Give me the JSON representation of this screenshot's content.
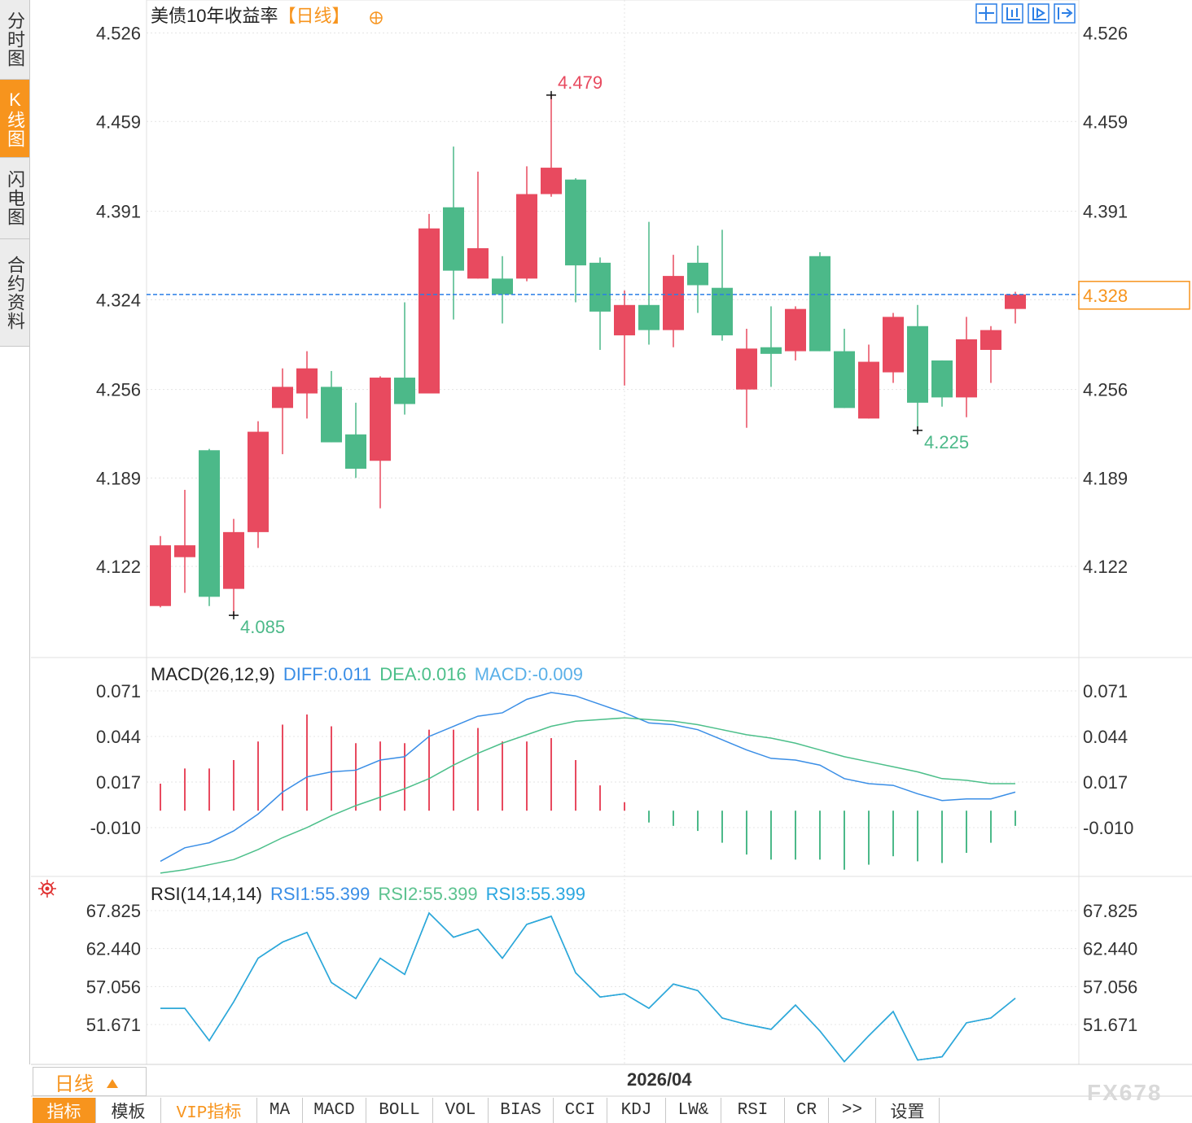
{
  "ui": {
    "sidebar": [
      "分时图",
      "K线图",
      "闪电图",
      "合约资料"
    ],
    "period_button": "日线",
    "toolbar": [
      "指标",
      "模板",
      "VIP指标",
      "MA",
      "MACD",
      "BOLL",
      "VOL",
      "BIAS",
      "CCI",
      "KDJ",
      "LW&",
      "RSI",
      "CR",
      ">>",
      "设置"
    ],
    "watermark": "FX678"
  },
  "chart_data": [
    {
      "type": "candlestick",
      "title": "美债10年收益率",
      "period": "【日线】",
      "categories": [
        null,
        null,
        null,
        null,
        null,
        null,
        null,
        null,
        null,
        null,
        null,
        null,
        null,
        null,
        null,
        null,
        null,
        null,
        null,
        "2026/04",
        null,
        null,
        null,
        null,
        null,
        null,
        null,
        null,
        null,
        null,
        null,
        null,
        null,
        null,
        null,
        null
      ],
      "open": [
        4.092,
        4.129,
        4.21,
        4.105,
        4.148,
        4.242,
        4.253,
        4.258,
        4.222,
        4.202,
        4.265,
        4.253,
        4.394,
        4.34,
        4.34,
        4.34,
        4.404,
        4.415,
        4.352,
        4.297,
        4.32,
        4.301,
        4.352,
        4.333,
        4.256,
        4.288,
        4.285,
        4.357,
        4.285,
        4.234,
        4.269,
        4.304,
        4.278,
        4.25,
        4.286,
        4.317
      ],
      "high": [
        4.145,
        4.18,
        4.211,
        4.158,
        4.232,
        4.272,
        4.285,
        4.27,
        4.246,
        4.266,
        4.322,
        4.389,
        4.44,
        4.421,
        4.357,
        4.425,
        4.479,
        4.416,
        4.356,
        4.331,
        4.383,
        4.358,
        4.365,
        4.377,
        4.302,
        4.319,
        4.319,
        4.36,
        4.302,
        4.29,
        4.314,
        4.32,
        4.278,
        4.311,
        4.304,
        4.33
      ],
      "low": [
        4.091,
        4.102,
        4.092,
        4.085,
        4.136,
        4.207,
        4.234,
        4.216,
        4.189,
        4.166,
        4.237,
        4.253,
        4.309,
        4.34,
        4.306,
        4.338,
        4.402,
        4.322,
        4.286,
        4.259,
        4.29,
        4.288,
        4.314,
        4.293,
        4.227,
        4.258,
        4.278,
        4.285,
        4.242,
        4.234,
        4.261,
        4.225,
        4.243,
        4.235,
        4.261,
        4.306
      ],
      "close": [
        4.138,
        4.138,
        4.099,
        4.148,
        4.224,
        4.258,
        4.272,
        4.216,
        4.196,
        4.265,
        4.245,
        4.378,
        4.346,
        4.363,
        4.328,
        4.404,
        4.424,
        4.35,
        4.315,
        4.32,
        4.301,
        4.342,
        4.335,
        4.297,
        4.287,
        4.283,
        4.317,
        4.285,
        4.242,
        4.277,
        4.311,
        4.246,
        4.25,
        4.294,
        4.301,
        4.328
      ],
      "up_color": "#e84a5f",
      "down_color": "#4cb989",
      "extreme_marks": [
        {
          "series": "high",
          "index": 16
        },
        {
          "series": "low",
          "index": 3
        },
        {
          "series": "low",
          "index": 31
        }
      ],
      "ylim": [
        4.053,
        4.551
      ],
      "yticks": [
        4.526,
        4.459,
        4.391,
        4.324,
        4.256,
        4.189,
        4.122
      ],
      "grid": true
    },
    {
      "type": "macd",
      "title": "MACD(26,12,9)",
      "separator": ":",
      "series": [
        {
          "name": "DIFF",
          "color": "#3a8ee6",
          "values": [
            -0.03,
            -0.022,
            -0.019,
            -0.012,
            -0.002,
            0.011,
            0.02,
            0.023,
            0.024,
            0.03,
            0.032,
            0.044,
            0.05,
            0.056,
            0.058,
            0.066,
            0.07,
            0.068,
            0.063,
            0.058,
            0.052,
            0.051,
            0.048,
            0.042,
            0.036,
            0.031,
            0.03,
            0.027,
            0.019,
            0.016,
            0.015,
            0.01,
            0.006,
            0.007,
            0.007,
            0.011
          ]
        },
        {
          "name": "DEA",
          "color": "#4cbf8a",
          "values": [
            -0.037,
            -0.035,
            -0.032,
            -0.029,
            -0.023,
            -0.016,
            -0.01,
            -0.003,
            0.003,
            0.008,
            0.013,
            0.019,
            0.027,
            0.034,
            0.04,
            0.045,
            0.05,
            0.053,
            0.054,
            0.055,
            0.054,
            0.053,
            0.051,
            0.048,
            0.045,
            0.043,
            0.04,
            0.036,
            0.032,
            0.029,
            0.026,
            0.023,
            0.019,
            0.018,
            0.016,
            0.016
          ]
        },
        {
          "name": "MACD",
          "type": "bar",
          "color": "#5ab0e8",
          "up_color": "#e84a5f",
          "down_color": "#4cb989",
          "values": [
            0.016,
            0.025,
            0.025,
            0.03,
            0.041,
            0.051,
            0.057,
            0.05,
            0.04,
            0.041,
            0.04,
            0.048,
            0.048,
            0.049,
            0.041,
            0.041,
            0.043,
            0.03,
            0.015,
            0.005,
            -0.007,
            -0.009,
            -0.012,
            -0.019,
            -0.026,
            -0.029,
            -0.029,
            -0.029,
            -0.035,
            -0.032,
            -0.027,
            -0.03,
            -0.031,
            -0.025,
            -0.019,
            -0.009
          ]
        }
      ],
      "ylim": [
        -0.038,
        0.0898
      ],
      "yticks": [
        0.071,
        0.044,
        0.017,
        {
          "value": -0.01,
          "label": "-0.010"
        }
      ],
      "grid": true
    },
    {
      "type": "line",
      "title": "RSI(14,14,14)",
      "separator": ":",
      "series": [
        {
          "name": "RSI1",
          "color": "#3a8ee6",
          "values": [
            53.97,
            53.97,
            49.39,
            54.89,
            61.07,
            63.36,
            64.73,
            57.63,
            55.35,
            61.07,
            58.78,
            67.48,
            64.05,
            65.19,
            61.07,
            65.88,
            67.02,
            59.01,
            55.57,
            56.03,
            53.97,
            57.41,
            56.49,
            52.6,
            51.68,
            50.99,
            54.43,
            50.76,
            46.41,
            50.08,
            53.51,
            46.64,
            47.1,
            51.91,
            52.6,
            55.399
          ]
        },
        {
          "name": "RSI2",
          "color": "#5cc28f",
          "values": [
            53.97,
            53.97,
            49.39,
            54.89,
            61.07,
            63.36,
            64.73,
            57.63,
            55.35,
            61.07,
            58.78,
            67.48,
            64.05,
            65.19,
            61.07,
            65.88,
            67.02,
            59.01,
            55.57,
            56.03,
            53.97,
            57.41,
            56.49,
            52.6,
            51.68,
            50.99,
            54.43,
            50.76,
            46.41,
            50.08,
            53.51,
            46.64,
            47.1,
            51.91,
            52.6,
            55.399
          ]
        },
        {
          "name": "RSI3",
          "color": "#2aa7e0",
          "values": [
            53.97,
            53.97,
            49.39,
            54.89,
            61.07,
            63.36,
            64.73,
            57.63,
            55.35,
            61.07,
            58.78,
            67.48,
            64.05,
            65.19,
            61.07,
            65.88,
            67.02,
            59.01,
            55.57,
            56.03,
            53.97,
            57.41,
            56.49,
            52.6,
            51.68,
            50.99,
            54.43,
            50.76,
            46.41,
            50.08,
            53.51,
            46.64,
            47.1,
            51.91,
            52.6,
            55.399
          ]
        }
      ],
      "ylim": [
        46.017,
        72.325
      ],
      "yticks": [
        67.825,
        {
          "value": 62.44,
          "label": "62.440"
        },
        57.056,
        51.671
      ],
      "grid": true
    }
  ]
}
